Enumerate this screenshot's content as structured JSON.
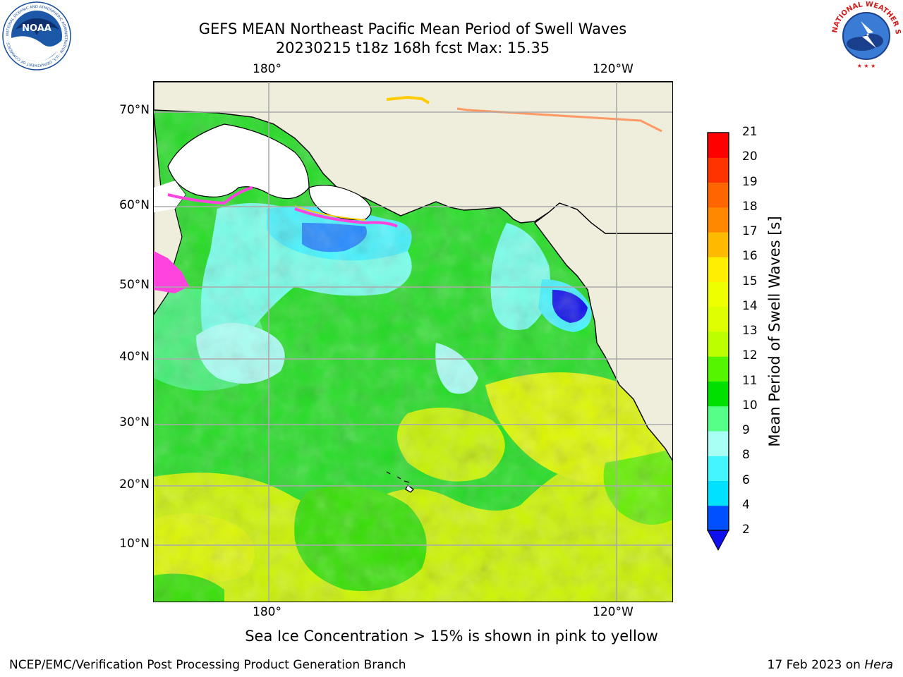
{
  "title": {
    "line1": "GEFS MEAN Northeast Pacific Mean Period of Swell Waves",
    "line2": "20230215 t18z 168h fcst   Max: 15.35"
  },
  "logos": {
    "left": {
      "name": "noaa-logo",
      "text": "NOAA",
      "ring_text": "NATIONAL OCEANIC AND ATMOSPHERIC ADMINISTRATION · U.S. DEPARTMENT OF COMMERCE"
    },
    "right": {
      "name": "nws-logo",
      "ring_text": "NATIONAL WEATHER SERVICE"
    }
  },
  "map": {
    "lon_labels_top": [
      "180°",
      "120°W"
    ],
    "lon_labels_bottom": [
      "180°",
      "120°W"
    ],
    "lat_labels": [
      "70°N",
      "60°N",
      "50°N",
      "40°N",
      "30°N",
      "20°N",
      "10°N"
    ],
    "land_color": "#efeddc",
    "ice_colors": [
      "#ff44dd",
      "#ffcc00"
    ],
    "field": "Mean Period of Swell Waves",
    "max_value": 15.35
  },
  "colorbar": {
    "title": "Mean Period of Swell Waves [s]",
    "levels": [
      "2",
      "4",
      "6",
      "8",
      "9",
      "10",
      "11",
      "12",
      "13",
      "14",
      "15",
      "16",
      "17",
      "18",
      "19",
      "20",
      "21"
    ],
    "colors": [
      "#0050ff",
      "#00e0ff",
      "#44f4ff",
      "#a8fff4",
      "#55ff88",
      "#00e000",
      "#55f500",
      "#bbff00",
      "#ddff00",
      "#eeff00",
      "#ffee00",
      "#ffbb00",
      "#ff8800",
      "#ff6600",
      "#ff3300",
      "#ff0000"
    ],
    "under_color": "#1010ee"
  },
  "footnote": "Sea Ice Concentration > 15% is shown in pink to yellow",
  "credit_left": "NCEP/EMC/Verification Post Processing Product Generation Branch",
  "credit_right_date": "17 Feb 2023 on ",
  "credit_right_host": "Hera"
}
